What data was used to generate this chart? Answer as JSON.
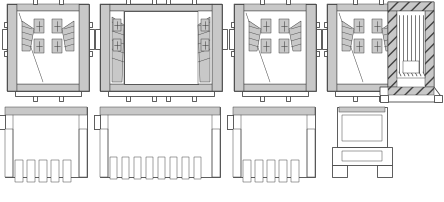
{
  "lc": "#404040",
  "gl": "#c8c8c8",
  "gm": "#a0a0a0",
  "gd": "#787878",
  "white": "#ffffff",
  "lw": 0.6,
  "lwt": 0.35
}
